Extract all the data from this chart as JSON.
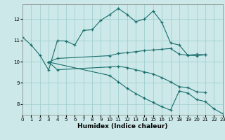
{
  "xlabel": "Humidex (Indice chaleur)",
  "bg_color": "#cce8e8",
  "grid_color": "#99cccc",
  "line_color": "#1a6e6e",
  "xlim": [
    0,
    23
  ],
  "ylim": [
    7.5,
    12.7
  ],
  "xticks": [
    0,
    1,
    2,
    3,
    4,
    5,
    6,
    7,
    8,
    9,
    10,
    11,
    12,
    13,
    14,
    15,
    16,
    17,
    18,
    19,
    20,
    21,
    22,
    23
  ],
  "yticks": [
    8,
    9,
    10,
    11,
    12
  ],
  "line1_x": [
    0,
    1,
    2,
    3,
    4,
    5,
    6,
    7,
    8,
    9,
    10,
    11,
    12,
    13,
    14,
    15,
    16,
    17,
    18,
    19,
    20,
    21
  ],
  "line1_y": [
    11.15,
    10.78,
    10.3,
    9.6,
    10.98,
    10.97,
    10.78,
    11.47,
    11.5,
    11.95,
    12.2,
    12.5,
    12.22,
    11.88,
    12.0,
    12.38,
    11.85,
    10.88,
    10.78,
    10.3,
    10.35,
    10.32
  ],
  "line2_x": [
    3,
    4,
    10,
    11,
    12,
    13,
    14,
    15,
    16,
    17,
    18,
    19,
    20,
    21
  ],
  "line2_y": [
    9.98,
    10.15,
    10.28,
    10.38,
    10.42,
    10.47,
    10.52,
    10.55,
    10.58,
    10.62,
    10.35,
    10.3,
    10.28,
    10.32
  ],
  "line3_x": [
    3,
    4,
    10,
    11,
    12,
    13,
    14,
    15,
    16,
    17,
    18,
    19,
    20,
    21
  ],
  "line3_y": [
    9.98,
    9.62,
    9.75,
    9.78,
    9.72,
    9.62,
    9.52,
    9.42,
    9.25,
    9.05,
    8.82,
    8.78,
    8.58,
    8.55
  ],
  "line4_x": [
    3,
    10,
    11,
    12,
    13,
    14,
    15,
    16,
    17,
    18,
    19,
    20,
    21,
    22,
    23
  ],
  "line4_y": [
    9.98,
    9.35,
    9.05,
    8.75,
    8.5,
    8.28,
    8.08,
    7.88,
    7.72,
    8.62,
    8.52,
    8.22,
    8.12,
    7.78,
    7.55
  ]
}
